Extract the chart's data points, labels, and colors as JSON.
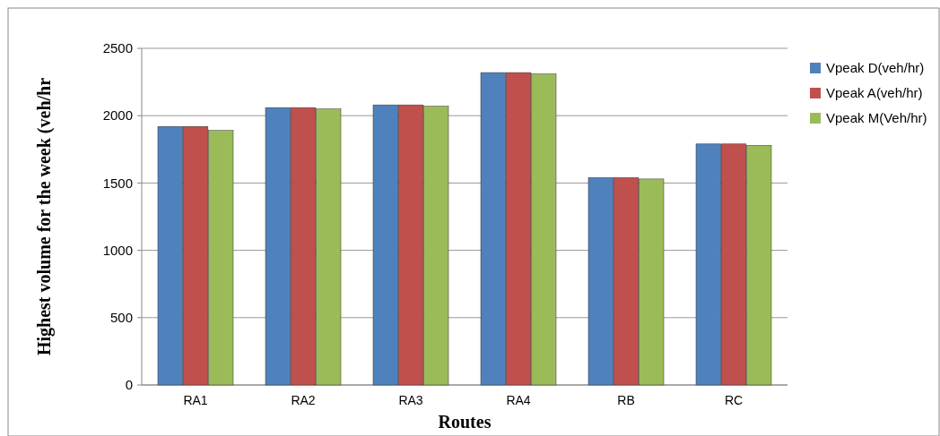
{
  "chart_data": {
    "type": "bar",
    "xlabel": "Routes",
    "ylabel": "Highest volume for the week (veh/hr",
    "categories": [
      "RA1",
      "RA2",
      "RA3",
      "RA4",
      "RB",
      "RC"
    ],
    "series": [
      {
        "name": "Vpeak D(veh/hr)",
        "color": "#4f81bd",
        "values": [
          1920,
          2060,
          2080,
          2320,
          1540,
          1790
        ]
      },
      {
        "name": "Vpeak A(veh/hr)",
        "color": "#c0504d",
        "values": [
          1920,
          2060,
          2080,
          2320,
          1540,
          1790
        ]
      },
      {
        "name": "Vpeak M(Veh/hr)",
        "color": "#9bbb59",
        "values": [
          1890,
          2050,
          2070,
          2310,
          1530,
          1780
        ]
      }
    ],
    "ylim": [
      0,
      2500
    ],
    "yticks": [
      0,
      500,
      1000,
      1500,
      2000,
      2500
    ],
    "grid": "y",
    "legend": "right"
  }
}
